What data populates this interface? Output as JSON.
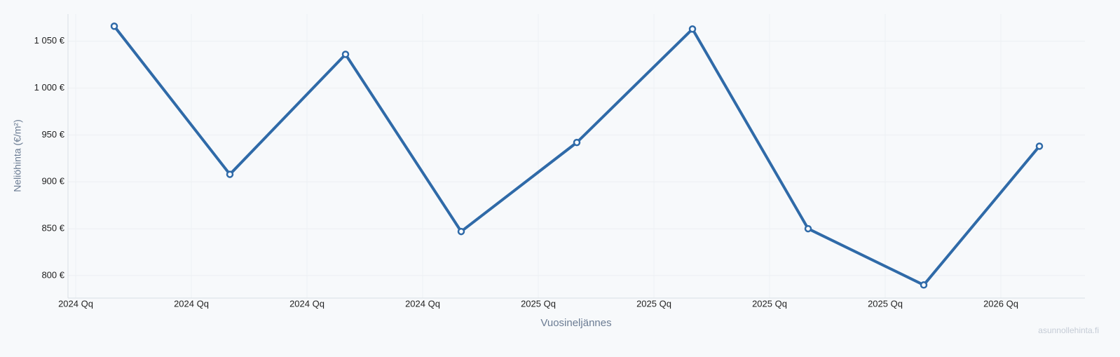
{
  "chart_data": {
    "type": "line",
    "categories": [
      "2024 Qq",
      "2024 Qq",
      "2024 Qq",
      "2024 Qq",
      "2025 Qq",
      "2025 Qq",
      "2025 Qq",
      "2025 Qq",
      "2026 Qq"
    ],
    "series": [
      {
        "name": "Neliöhinta",
        "color": "#2f6aa8",
        "values": [
          1066,
          908,
          1036,
          847,
          942,
          1063,
          850,
          790,
          938
        ]
      }
    ],
    "ylim": [
      776,
      1079
    ],
    "yticks": [
      {
        "value": 800,
        "label": "800 €"
      },
      {
        "value": 850,
        "label": "850 €"
      },
      {
        "value": 900,
        "label": "900 €"
      },
      {
        "value": 950,
        "label": "950 €"
      },
      {
        "value": 1000,
        "label": "1 000 €"
      },
      {
        "value": 1050,
        "label": "1 050 €"
      }
    ],
    "y_label": "Neliöhinta (€/m²)",
    "x_label": "Vuosineljännes",
    "watermark": "asunnollehinta.fi",
    "grid": true
  }
}
